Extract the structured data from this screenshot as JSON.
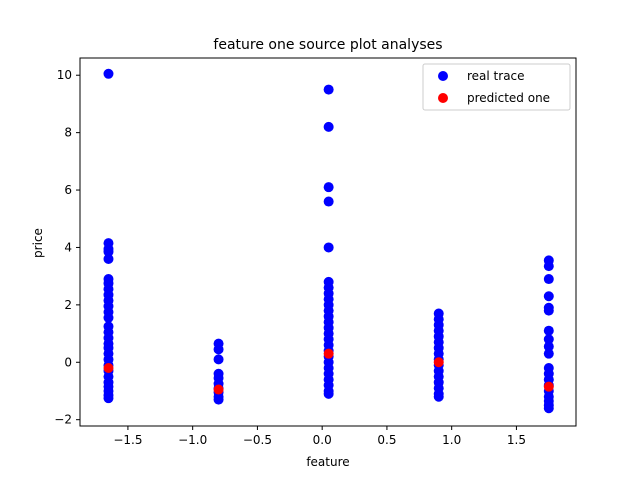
{
  "chart_data": {
    "type": "scatter",
    "title": "feature one source plot analyses",
    "xlabel": "feature",
    "ylabel": "price",
    "xlim": [
      -1.87,
      1.96
    ],
    "ylim": [
      -2.22,
      10.6
    ],
    "xticks": [
      -1.5,
      -1.0,
      -0.5,
      0.0,
      0.5,
      1.0,
      1.5
    ],
    "xtick_labels": [
      "−1.5",
      "−1.0",
      "−0.5",
      "0.0",
      "0.5",
      "1.0",
      "1.5"
    ],
    "yticks": [
      -2,
      0,
      2,
      4,
      6,
      8,
      10
    ],
    "ytick_labels": [
      "−2",
      "0",
      "2",
      "4",
      "6",
      "8",
      "10"
    ],
    "grid": false,
    "legend_position": "top-right",
    "series": [
      {
        "name": "real trace",
        "color": "#0000ff",
        "points": [
          [
            -1.65,
            10.05
          ],
          [
            -1.65,
            4.15
          ],
          [
            -1.65,
            3.95
          ],
          [
            -1.65,
            3.85
          ],
          [
            -1.65,
            3.6
          ],
          [
            -1.65,
            2.9
          ],
          [
            -1.65,
            2.75
          ],
          [
            -1.65,
            2.55
          ],
          [
            -1.65,
            2.35
          ],
          [
            -1.65,
            2.15
          ],
          [
            -1.65,
            1.95
          ],
          [
            -1.65,
            1.75
          ],
          [
            -1.65,
            1.55
          ],
          [
            -1.65,
            1.25
          ],
          [
            -1.65,
            1.05
          ],
          [
            -1.65,
            0.85
          ],
          [
            -1.65,
            0.65
          ],
          [
            -1.65,
            0.5
          ],
          [
            -1.65,
            0.3
          ],
          [
            -1.65,
            0.1
          ],
          [
            -1.65,
            -0.1
          ],
          [
            -1.65,
            -0.3
          ],
          [
            -1.65,
            -0.5
          ],
          [
            -1.65,
            -0.7
          ],
          [
            -1.65,
            -0.85
          ],
          [
            -1.65,
            -1.0
          ],
          [
            -1.65,
            -1.15
          ],
          [
            -1.65,
            -1.25
          ],
          [
            -0.8,
            0.65
          ],
          [
            -0.8,
            0.45
          ],
          [
            -0.8,
            0.1
          ],
          [
            -0.8,
            -0.4
          ],
          [
            -0.8,
            -0.55
          ],
          [
            -0.8,
            -0.75
          ],
          [
            -0.8,
            -0.9
          ],
          [
            -0.8,
            -1.05
          ],
          [
            -0.8,
            -1.2
          ],
          [
            -0.8,
            -1.3
          ],
          [
            0.05,
            9.5
          ],
          [
            0.05,
            8.2
          ],
          [
            0.05,
            6.1
          ],
          [
            0.05,
            5.6
          ],
          [
            0.05,
            4.0
          ],
          [
            0.05,
            2.8
          ],
          [
            0.05,
            2.6
          ],
          [
            0.05,
            2.4
          ],
          [
            0.05,
            2.2
          ],
          [
            0.05,
            2.0
          ],
          [
            0.05,
            1.8
          ],
          [
            0.05,
            1.6
          ],
          [
            0.05,
            1.4
          ],
          [
            0.05,
            1.2
          ],
          [
            0.05,
            1.0
          ],
          [
            0.05,
            0.8
          ],
          [
            0.05,
            0.6
          ],
          [
            0.05,
            0.4
          ],
          [
            0.05,
            0.2
          ],
          [
            0.05,
            0.0
          ],
          [
            0.05,
            -0.2
          ],
          [
            0.05,
            -0.4
          ],
          [
            0.05,
            -0.6
          ],
          [
            0.05,
            -0.8
          ],
          [
            0.05,
            -1.0
          ],
          [
            0.05,
            -1.1
          ],
          [
            0.9,
            1.7
          ],
          [
            0.9,
            1.5
          ],
          [
            0.9,
            1.3
          ],
          [
            0.9,
            1.1
          ],
          [
            0.9,
            0.9
          ],
          [
            0.9,
            0.7
          ],
          [
            0.9,
            0.5
          ],
          [
            0.9,
            0.3
          ],
          [
            0.9,
            0.1
          ],
          [
            0.9,
            -0.1
          ],
          [
            0.9,
            -0.3
          ],
          [
            0.9,
            -0.5
          ],
          [
            0.9,
            -0.7
          ],
          [
            0.9,
            -0.9
          ],
          [
            0.9,
            -1.1
          ],
          [
            0.9,
            -1.2
          ],
          [
            1.75,
            3.55
          ],
          [
            1.75,
            3.35
          ],
          [
            1.75,
            2.9
          ],
          [
            1.75,
            2.3
          ],
          [
            1.75,
            1.9
          ],
          [
            1.75,
            1.8
          ],
          [
            1.75,
            1.1
          ],
          [
            1.75,
            0.8
          ],
          [
            1.75,
            0.55
          ],
          [
            1.75,
            0.3
          ],
          [
            1.75,
            -0.2
          ],
          [
            1.75,
            -0.4
          ],
          [
            1.75,
            -0.6
          ],
          [
            1.75,
            -0.8
          ],
          [
            1.75,
            -1.0
          ],
          [
            1.75,
            -1.2
          ],
          [
            1.75,
            -1.35
          ],
          [
            1.75,
            -1.5
          ],
          [
            1.75,
            -1.6
          ]
        ]
      },
      {
        "name": "predicted one",
        "color": "#ff0000",
        "points": [
          [
            -1.65,
            -0.2
          ],
          [
            -0.8,
            -0.95
          ],
          [
            0.05,
            0.3
          ],
          [
            0.9,
            0.0
          ],
          [
            1.75,
            -0.85
          ]
        ]
      }
    ]
  }
}
